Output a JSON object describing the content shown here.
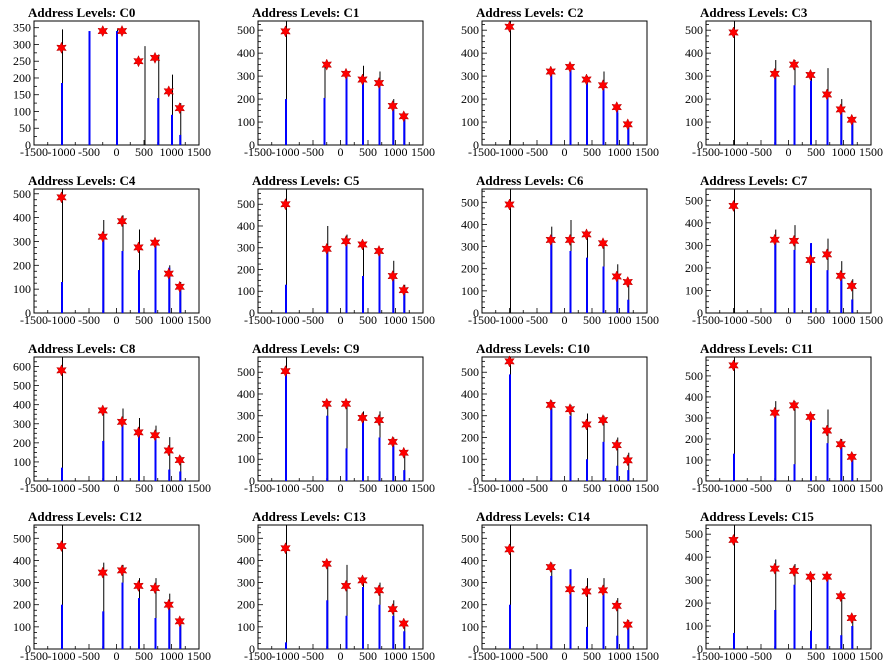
{
  "colors": {
    "peak": "#0000ff",
    "star": "#ff0000",
    "frame": "#000000"
  },
  "x_ticks": [
    "-1500",
    "-1000",
    "-500",
    "0",
    "500",
    "1000",
    "1500"
  ],
  "y_tick_step": 50,
  "chart_data": [
    {
      "type": "bar",
      "title": "Address Levels: C0",
      "xlim": [
        -1500,
        1500
      ],
      "ylim": [
        0,
        370
      ],
      "yticks": [
        0,
        50,
        100,
        150,
        200,
        250,
        300,
        350
      ],
      "x": [
        -1000,
        -500,
        -250,
        0,
        250,
        500,
        750,
        1000,
        1150
      ],
      "thin": [
        345,
        null,
        null,
        345,
        null,
        295,
        270,
        210,
        125
      ],
      "thick": [
        185,
        340,
        null,
        340,
        null,
        null,
        140,
        90,
        30
      ],
      "stars": [
        {
          "x": -1000,
          "y": 290
        },
        {
          "x": -250,
          "y": 340
        },
        {
          "x": 100,
          "y": 340
        },
        {
          "x": 400,
          "y": 250
        },
        {
          "x": 700,
          "y": 260
        },
        {
          "x": 950,
          "y": 160
        },
        {
          "x": 1150,
          "y": 110
        }
      ]
    },
    {
      "type": "bar",
      "title": "Address Levels: C1",
      "xlim": [
        -1500,
        1500
      ],
      "ylim": [
        0,
        540
      ],
      "yticks": [
        0,
        100,
        200,
        300,
        400,
        500
      ],
      "x": [
        -1000,
        -300,
        100,
        400,
        700,
        950,
        1150
      ],
      "thin": [
        540,
        360,
        null,
        345,
        320,
        200,
        140
      ],
      "thick": [
        200,
        205,
        310,
        300,
        275,
        160,
        120
      ],
      "stars": [
        {
          "x": -1000,
          "y": 495
        },
        {
          "x": -250,
          "y": 350
        },
        {
          "x": 100,
          "y": 310
        },
        {
          "x": 400,
          "y": 285
        },
        {
          "x": 700,
          "y": 270
        },
        {
          "x": 950,
          "y": 170
        },
        {
          "x": 1150,
          "y": 125
        }
      ]
    },
    {
      "type": "bar",
      "title": "Address Levels: C2",
      "xlim": [
        -1500,
        1500
      ],
      "ylim": [
        0,
        540
      ],
      "yticks": [
        0,
        100,
        200,
        300,
        400,
        500
      ],
      "x": [
        -1000,
        -250,
        100,
        400,
        700,
        950,
        1150
      ],
      "thin": [
        540,
        null,
        null,
        300,
        320,
        140,
        100
      ],
      "thick": [
        null,
        320,
        340,
        280,
        260,
        170,
        90
      ],
      "stars": [
        {
          "x": -1000,
          "y": 515
        },
        {
          "x": -250,
          "y": 320
        },
        {
          "x": 100,
          "y": 340
        },
        {
          "x": 400,
          "y": 285
        },
        {
          "x": 700,
          "y": 260
        },
        {
          "x": 950,
          "y": 165
        },
        {
          "x": 1150,
          "y": 90
        }
      ]
    },
    {
      "type": "bar",
      "title": "Address Levels: C3",
      "xlim": [
        -1500,
        1500
      ],
      "ylim": [
        0,
        540
      ],
      "yticks": [
        0,
        100,
        200,
        300,
        400,
        500
      ],
      "x": [
        -1000,
        -250,
        100,
        400,
        700,
        950,
        1150
      ],
      "thin": [
        540,
        370,
        370,
        300,
        335,
        200,
        120
      ],
      "thick": [
        null,
        310,
        260,
        280,
        220,
        150,
        110
      ],
      "stars": [
        {
          "x": -1000,
          "y": 490
        },
        {
          "x": -250,
          "y": 310
        },
        {
          "x": 100,
          "y": 350
        },
        {
          "x": 400,
          "y": 305
        },
        {
          "x": 700,
          "y": 220
        },
        {
          "x": 950,
          "y": 155
        },
        {
          "x": 1150,
          "y": 110
        }
      ]
    },
    {
      "type": "bar",
      "title": "Address Levels: C4",
      "xlim": [
        -1500,
        1500
      ],
      "ylim": [
        0,
        520
      ],
      "yticks": [
        0,
        100,
        200,
        300,
        400,
        500
      ],
      "x": [
        -1000,
        -250,
        100,
        400,
        700,
        950,
        1150
      ],
      "thin": [
        520,
        390,
        410,
        350,
        300,
        200,
        130
      ],
      "thick": [
        130,
        320,
        260,
        180,
        300,
        190,
        100
      ],
      "stars": [
        {
          "x": -1000,
          "y": 485
        },
        {
          "x": -250,
          "y": 320
        },
        {
          "x": 100,
          "y": 385
        },
        {
          "x": 400,
          "y": 275
        },
        {
          "x": 700,
          "y": 295
        },
        {
          "x": 950,
          "y": 165
        },
        {
          "x": 1150,
          "y": 110
        }
      ]
    },
    {
      "type": "bar",
      "title": "Address Levels: C5",
      "xlim": [
        -1500,
        1500
      ],
      "ylim": [
        0,
        570
      ],
      "yticks": [
        0,
        100,
        200,
        300,
        400,
        500
      ],
      "x": [
        -1000,
        -250,
        100,
        400,
        700,
        950,
        1150
      ],
      "thin": [
        570,
        400,
        360,
        320,
        300,
        240,
        130
      ],
      "thick": [
        130,
        290,
        320,
        170,
        280,
        180,
        100
      ],
      "stars": [
        {
          "x": -1000,
          "y": 500
        },
        {
          "x": -250,
          "y": 295
        },
        {
          "x": 100,
          "y": 330
        },
        {
          "x": 400,
          "y": 315
        },
        {
          "x": 700,
          "y": 285
        },
        {
          "x": 950,
          "y": 170
        },
        {
          "x": 1150,
          "y": 105
        }
      ]
    },
    {
      "type": "bar",
      "title": "Address Levels: C6",
      "xlim": [
        -1500,
        1500
      ],
      "ylim": [
        0,
        560
      ],
      "yticks": [
        0,
        100,
        200,
        300,
        400,
        500
      ],
      "x": [
        -1000,
        -250,
        100,
        400,
        700,
        950,
        1150
      ],
      "thin": [
        560,
        390,
        420,
        360,
        320,
        220,
        130
      ],
      "thick": [
        null,
        350,
        280,
        250,
        210,
        170,
        60
      ],
      "stars": [
        {
          "x": -1000,
          "y": 490
        },
        {
          "x": -250,
          "y": 330
        },
        {
          "x": 100,
          "y": 330
        },
        {
          "x": 400,
          "y": 355
        },
        {
          "x": 700,
          "y": 315
        },
        {
          "x": 950,
          "y": 165
        },
        {
          "x": 1150,
          "y": 140
        }
      ]
    },
    {
      "type": "bar",
      "title": "Address Levels: C7",
      "xlim": [
        -1500,
        1500
      ],
      "ylim": [
        0,
        550
      ],
      "yticks": [
        0,
        100,
        200,
        300,
        400,
        500
      ],
      "x": [
        -1000,
        -250,
        100,
        400,
        700,
        950,
        1150
      ],
      "thin": [
        550,
        370,
        390,
        310,
        330,
        230,
        150
      ],
      "thick": [
        null,
        310,
        280,
        310,
        190,
        150,
        60
      ],
      "stars": [
        {
          "x": -1000,
          "y": 475
        },
        {
          "x": -250,
          "y": 325
        },
        {
          "x": 100,
          "y": 320
        },
        {
          "x": 400,
          "y": 235
        },
        {
          "x": 700,
          "y": 260
        },
        {
          "x": 950,
          "y": 165
        },
        {
          "x": 1150,
          "y": 120
        }
      ]
    },
    {
      "type": "bar",
      "title": "Address Levels: C8",
      "xlim": [
        -1500,
        1500
      ],
      "ylim": [
        0,
        650
      ],
      "yticks": [
        0,
        100,
        200,
        300,
        400,
        500,
        600
      ],
      "x": [
        -1000,
        -250,
        100,
        400,
        700,
        950,
        1150
      ],
      "thin": [
        650,
        380,
        380,
        330,
        290,
        230,
        130
      ],
      "thick": [
        70,
        210,
        300,
        250,
        240,
        60,
        50
      ],
      "stars": [
        {
          "x": -1000,
          "y": 580
        },
        {
          "x": -250,
          "y": 370
        },
        {
          "x": 100,
          "y": 310
        },
        {
          "x": 400,
          "y": 255
        },
        {
          "x": 700,
          "y": 240
        },
        {
          "x": 950,
          "y": 160
        },
        {
          "x": 1150,
          "y": 110
        }
      ]
    },
    {
      "type": "bar",
      "title": "Address Levels: C9",
      "xlim": [
        -1500,
        1500
      ],
      "ylim": [
        0,
        570
      ],
      "yticks": [
        0,
        100,
        200,
        300,
        400,
        500
      ],
      "x": [
        -1000,
        -250,
        100,
        400,
        700,
        950,
        1150
      ],
      "thin": [
        570,
        370,
        370,
        320,
        320,
        200,
        130
      ],
      "thick": [
        500,
        300,
        150,
        270,
        200,
        160,
        50
      ],
      "stars": [
        {
          "x": -1000,
          "y": 505
        },
        {
          "x": -250,
          "y": 355
        },
        {
          "x": 100,
          "y": 355
        },
        {
          "x": 400,
          "y": 290
        },
        {
          "x": 700,
          "y": 280
        },
        {
          "x": 950,
          "y": 180
        },
        {
          "x": 1150,
          "y": 130
        }
      ]
    },
    {
      "type": "bar",
      "title": "Address Levels: C10",
      "xlim": [
        -1500,
        1500
      ],
      "ylim": [
        0,
        570
      ],
      "yticks": [
        0,
        100,
        200,
        300,
        400,
        500
      ],
      "x": [
        -1000,
        -250,
        100,
        400,
        700,
        950,
        1150
      ],
      "thin": [
        570,
        370,
        350,
        310,
        300,
        200,
        130
      ],
      "thick": [
        490,
        330,
        300,
        100,
        180,
        70,
        50
      ],
      "stars": [
        {
          "x": -1000,
          "y": 550
        },
        {
          "x": -250,
          "y": 350
        },
        {
          "x": 100,
          "y": 330
        },
        {
          "x": 400,
          "y": 260
        },
        {
          "x": 700,
          "y": 280
        },
        {
          "x": 950,
          "y": 165
        },
        {
          "x": 1150,
          "y": 95
        }
      ]
    },
    {
      "type": "bar",
      "title": "Address Levels: C11",
      "xlim": [
        -1500,
        1500
      ],
      "ylim": [
        0,
        590
      ],
      "yticks": [
        0,
        100,
        200,
        300,
        400,
        500
      ],
      "x": [
        -1000,
        -250,
        100,
        400,
        700,
        950,
        1150
      ],
      "thin": [
        590,
        380,
        380,
        320,
        340,
        200,
        130
      ],
      "thick": [
        130,
        330,
        80,
        310,
        180,
        170,
        110
      ],
      "stars": [
        {
          "x": -1000,
          "y": 550
        },
        {
          "x": -250,
          "y": 325
        },
        {
          "x": 100,
          "y": 360
        },
        {
          "x": 400,
          "y": 305
        },
        {
          "x": 700,
          "y": 240
        },
        {
          "x": 950,
          "y": 175
        },
        {
          "x": 1150,
          "y": 115
        }
      ]
    },
    {
      "type": "bar",
      "title": "Address Levels: C12",
      "xlim": [
        -1500,
        1500
      ],
      "ylim": [
        0,
        560
      ],
      "yticks": [
        0,
        100,
        200,
        300,
        400,
        500
      ],
      "x": [
        -1000,
        -250,
        100,
        400,
        700,
        950,
        1150
      ],
      "thin": [
        560,
        390,
        380,
        320,
        320,
        250,
        140
      ],
      "thick": [
        200,
        170,
        300,
        230,
        140,
        180,
        110
      ],
      "stars": [
        {
          "x": -1000,
          "y": 465
        },
        {
          "x": -250,
          "y": 345
        },
        {
          "x": 100,
          "y": 355
        },
        {
          "x": 400,
          "y": 285
        },
        {
          "x": 700,
          "y": 275
        },
        {
          "x": 950,
          "y": 200
        },
        {
          "x": 1150,
          "y": 125
        }
      ]
    },
    {
      "type": "bar",
      "title": "Address Levels: C13",
      "xlim": [
        -1500,
        1500
      ],
      "ylim": [
        0,
        560
      ],
      "yticks": [
        0,
        100,
        200,
        300,
        400,
        500
      ],
      "x": [
        -1000,
        -250,
        100,
        400,
        700,
        950,
        1150
      ],
      "thin": [
        560,
        390,
        380,
        320,
        300,
        220,
        130
      ],
      "thick": [
        30,
        220,
        150,
        280,
        200,
        150,
        80
      ],
      "stars": [
        {
          "x": -1000,
          "y": 455
        },
        {
          "x": -250,
          "y": 385
        },
        {
          "x": 100,
          "y": 285
        },
        {
          "x": 400,
          "y": 310
        },
        {
          "x": 700,
          "y": 265
        },
        {
          "x": 950,
          "y": 180
        },
        {
          "x": 1150,
          "y": 115
        }
      ]
    },
    {
      "type": "bar",
      "title": "Address Levels: C14",
      "xlim": [
        -1500,
        1500
      ],
      "ylim": [
        0,
        560
      ],
      "yticks": [
        0,
        100,
        200,
        300,
        400,
        500
      ],
      "x": [
        -1000,
        -250,
        100,
        400,
        700,
        950,
        1150
      ],
      "thin": [
        560,
        390,
        360,
        320,
        320,
        230,
        130
      ],
      "thick": [
        200,
        330,
        360,
        100,
        270,
        60,
        100
      ],
      "stars": [
        {
          "x": -1000,
          "y": 450
        },
        {
          "x": -250,
          "y": 370
        },
        {
          "x": 100,
          "y": 270
        },
        {
          "x": 400,
          "y": 260
        },
        {
          "x": 700,
          "y": 265
        },
        {
          "x": 950,
          "y": 195
        },
        {
          "x": 1150,
          "y": 110
        }
      ]
    },
    {
      "type": "bar",
      "title": "Address Levels: C15",
      "xlim": [
        -1500,
        1500
      ],
      "ylim": [
        0,
        540
      ],
      "yticks": [
        0,
        100,
        200,
        300,
        400,
        500
      ],
      "x": [
        -1000,
        -250,
        100,
        400,
        700,
        950,
        1150
      ],
      "thin": [
        540,
        390,
        370,
        320,
        320,
        230,
        140
      ],
      "thick": [
        70,
        170,
        280,
        80,
        320,
        60,
        100
      ],
      "stars": [
        {
          "x": -1000,
          "y": 475
        },
        {
          "x": -250,
          "y": 350
        },
        {
          "x": 100,
          "y": 340
        },
        {
          "x": 400,
          "y": 315
        },
        {
          "x": 700,
          "y": 315
        },
        {
          "x": 950,
          "y": 230
        },
        {
          "x": 1150,
          "y": 135
        }
      ]
    }
  ]
}
